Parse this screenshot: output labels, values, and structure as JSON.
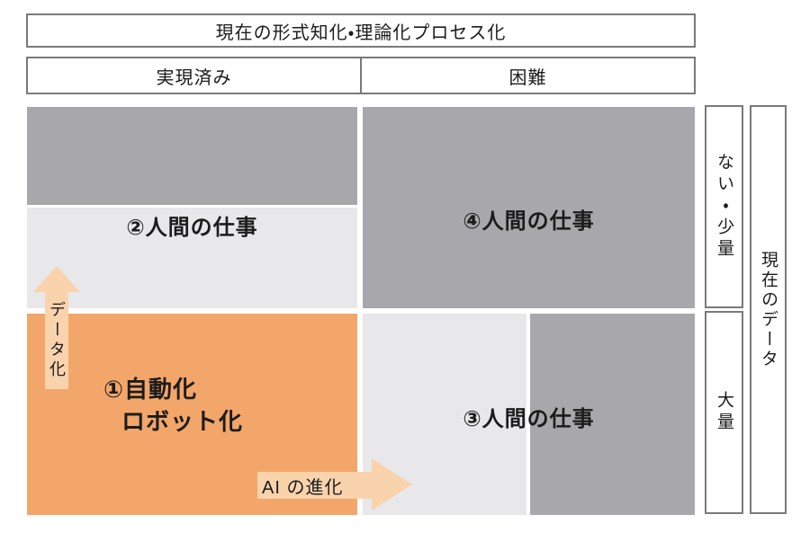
{
  "header": {
    "title": "現在の形式知化・理論化プロセス化",
    "col_left": "実現済み",
    "col_right": "困難"
  },
  "quadrants": {
    "q1": {
      "label_line1": "①自動化",
      "label_line2": "ロボット化"
    },
    "q2": {
      "label": "②人間の仕事"
    },
    "q3": {
      "label": "③人間の仕事"
    },
    "q4": {
      "label": "④人間の仕事"
    }
  },
  "arrows": {
    "up_label": "データ化",
    "right_label": "AI の進化"
  },
  "right_axis": {
    "top_label": "ない・少量",
    "bottom_label": "大量",
    "outer_label": "現在のデータ"
  },
  "colors": {
    "dark_gray": "#a8a8ac",
    "light_gray": "#e8e8ea",
    "orange": "#f3a669",
    "peach": "#f9d3ac",
    "border": "#7a7a7a",
    "text": "#1c1c1c"
  }
}
